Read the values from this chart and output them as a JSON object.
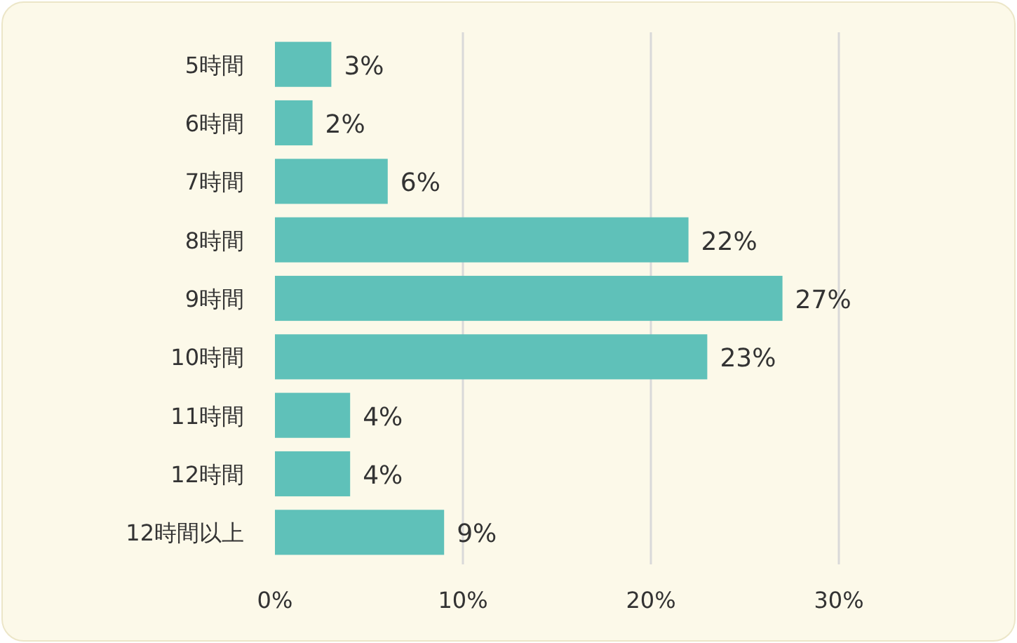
{
  "chart_data": {
    "type": "bar",
    "orientation": "horizontal",
    "categories": [
      "5時間",
      "6時間",
      "7時間",
      "8時間",
      "9時間",
      "10時間",
      "11時間",
      "12時間",
      "12時間以上"
    ],
    "values": [
      3,
      2,
      6,
      22,
      27,
      23,
      4,
      4,
      9
    ],
    "color": "#5fc1b9",
    "xlim": [
      0,
      30
    ],
    "xticks": [
      {
        "value": 0,
        "label": "0%"
      },
      {
        "value": 10,
        "label": "10%"
      },
      {
        "value": 20,
        "label": "20%"
      },
      {
        "value": 30,
        "label": "30%"
      }
    ],
    "value_labels": [
      "3%",
      "2%",
      "6%",
      "22%",
      "27%",
      "23%",
      "4%",
      "4%",
      "9%"
    ],
    "grid": "x"
  }
}
